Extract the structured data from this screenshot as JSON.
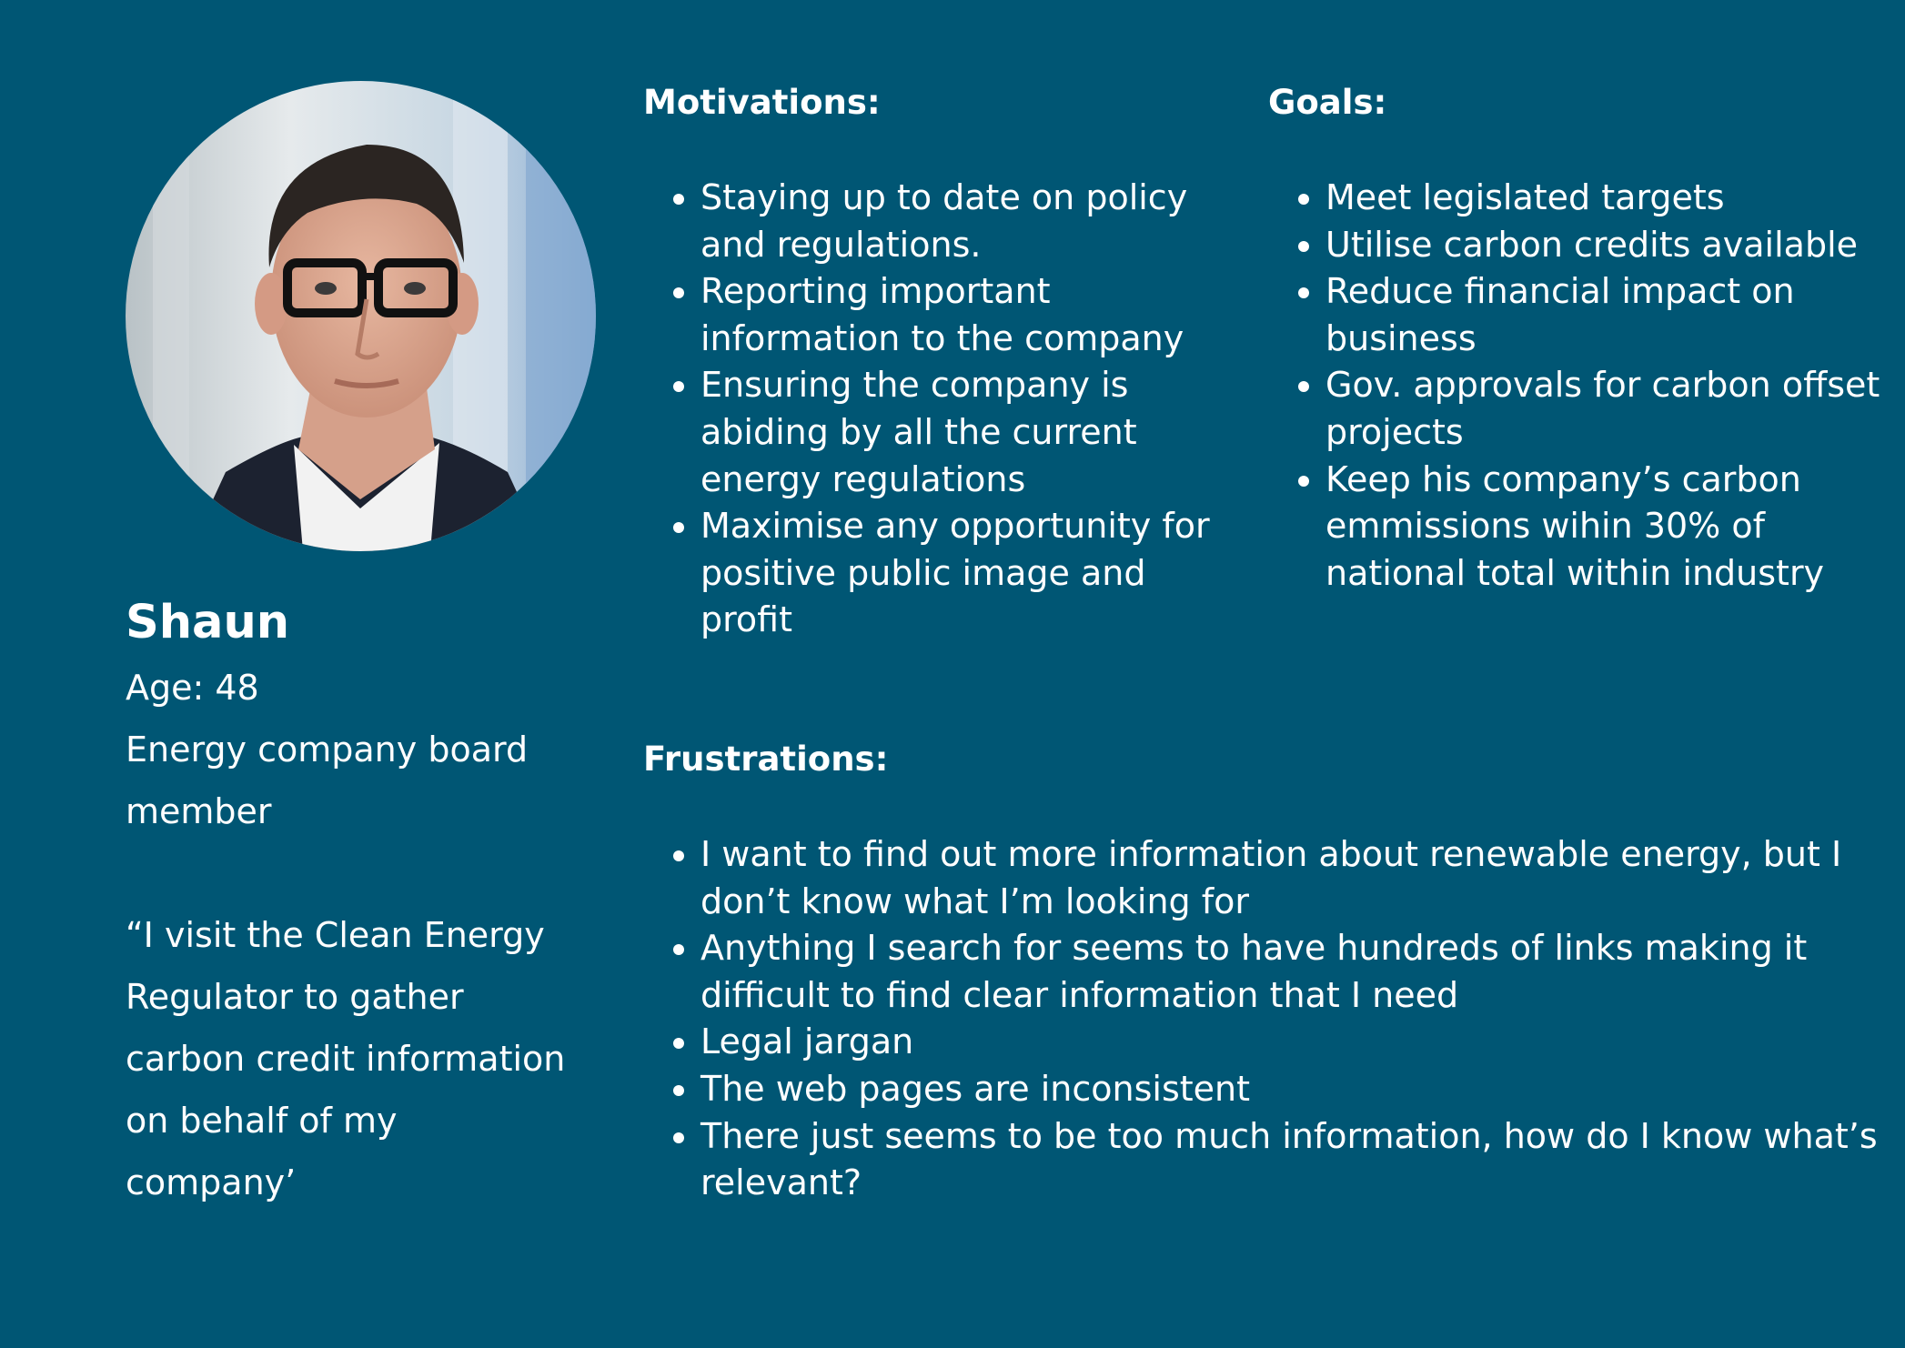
{
  "persona": {
    "photo_icon": "portrait-photo",
    "name": "Shaun",
    "age": "Age: 48",
    "role_line1": "Energy company board",
    "role_line2": "member",
    "quote_lines": [
      "“I visit the Clean Energy",
      "Regulator to gather",
      "carbon credit information",
      "on behalf of my",
      "company’"
    ]
  },
  "motivations": {
    "title": "Motivations:",
    "items": [
      "Staying up to date on policy and regulations.",
      "Reporting important information to the company",
      "Ensuring the company is abiding by all the current energy regulations",
      "Maximise any opportunity for positive public image and profit"
    ]
  },
  "goals": {
    "title": "Goals:",
    "items": [
      "Meet legislated targets",
      "Utilise carbon credits available",
      "Reduce financial impact on business",
      "Gov. approvals for carbon offset projects",
      "Keep his company’s carbon emmissions wihin 30% of national total within industry"
    ]
  },
  "frustrations": {
    "title": "Frustrations:",
    "items": [
      "I want to find out more information about renewable energy, but I don’t know what I’m looking for",
      "Anything I search for seems to have hundreds of links making it difficult to find clear information that I need",
      "Legal jargan",
      "The web pages are inconsistent",
      "There just seems to be too much information, how do I know what’s relevant?"
    ]
  },
  "colors": {
    "background": "#005674",
    "text": "#ffffff"
  }
}
